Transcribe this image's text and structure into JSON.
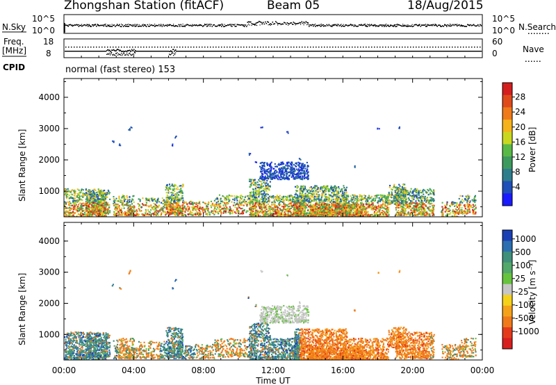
{
  "header": {
    "station": "Zhongshan Station (fitACF)",
    "beam": "Beam 05",
    "date": "18/Aug/2015"
  },
  "status_panels": {
    "nsky_label": "N.Sky",
    "nsky_ticks": [
      "10^5",
      "10^0"
    ],
    "nsearch_label": "N.Search",
    "nsearch_ticks": [
      "10^5",
      "10^0"
    ],
    "freq_label": "Freq.",
    "freq_unit": "[MHz]",
    "freq_ticks": [
      "18",
      "8"
    ],
    "nave_label": "Nave",
    "nave_ticks": [
      "60",
      "0"
    ],
    "cpid_label": "CPID",
    "cpid_text": "normal (fast stereo) 153"
  },
  "chart_data": [
    {
      "type": "heatmap",
      "parameter": "Power",
      "xlabel": "Time UT",
      "ylabel": "Slant Range [km]",
      "xlim": [
        "00:00",
        "24:00"
      ],
      "ylim": [
        180,
        4600
      ],
      "yticks": [
        "1000",
        "2000",
        "3000",
        "4000"
      ],
      "xticks": [
        "00:00",
        "04:00",
        "08:00",
        "12:00",
        "16:00",
        "20:00",
        "00:00"
      ],
      "colorbar": {
        "label": "Power [dB]",
        "ticks": [
          "4",
          "8",
          "12",
          "16",
          "20",
          "24",
          "28"
        ],
        "colors": [
          "#1a1aff",
          "#1f4fb8",
          "#2e7d8c",
          "#3d9a5e",
          "#58b947",
          "#c9d81f",
          "#f5b21a",
          "#f07a1a",
          "#e04a1a",
          "#d41e1e"
        ]
      }
    },
    {
      "type": "heatmap",
      "parameter": "Velocity",
      "xlabel": "Time UT",
      "ylabel": "Slant Range [km]",
      "xlim": [
        "00:00",
        "24:00"
      ],
      "ylim": [
        180,
        4600
      ],
      "yticks": [
        "1000",
        "2000",
        "3000",
        "4000"
      ],
      "xticks": [
        "00:00",
        "04:00",
        "08:00",
        "12:00",
        "16:00",
        "20:00",
        "00:00"
      ],
      "colorbar": {
        "label": "Velocity [m s⁻¹]",
        "ticks": [
          "1000",
          "500",
          "100",
          "25",
          "-25",
          "-100",
          "-500",
          "-1000"
        ],
        "colors": [
          "#1a3fb5",
          "#2c6fb0",
          "#3f8f7a",
          "#52a86a",
          "#66c33d",
          "#c6c6c6",
          "#f5d11a",
          "#f5a21a",
          "#f07a1a",
          "#e53a1a",
          "#d81e1e"
        ]
      }
    }
  ]
}
